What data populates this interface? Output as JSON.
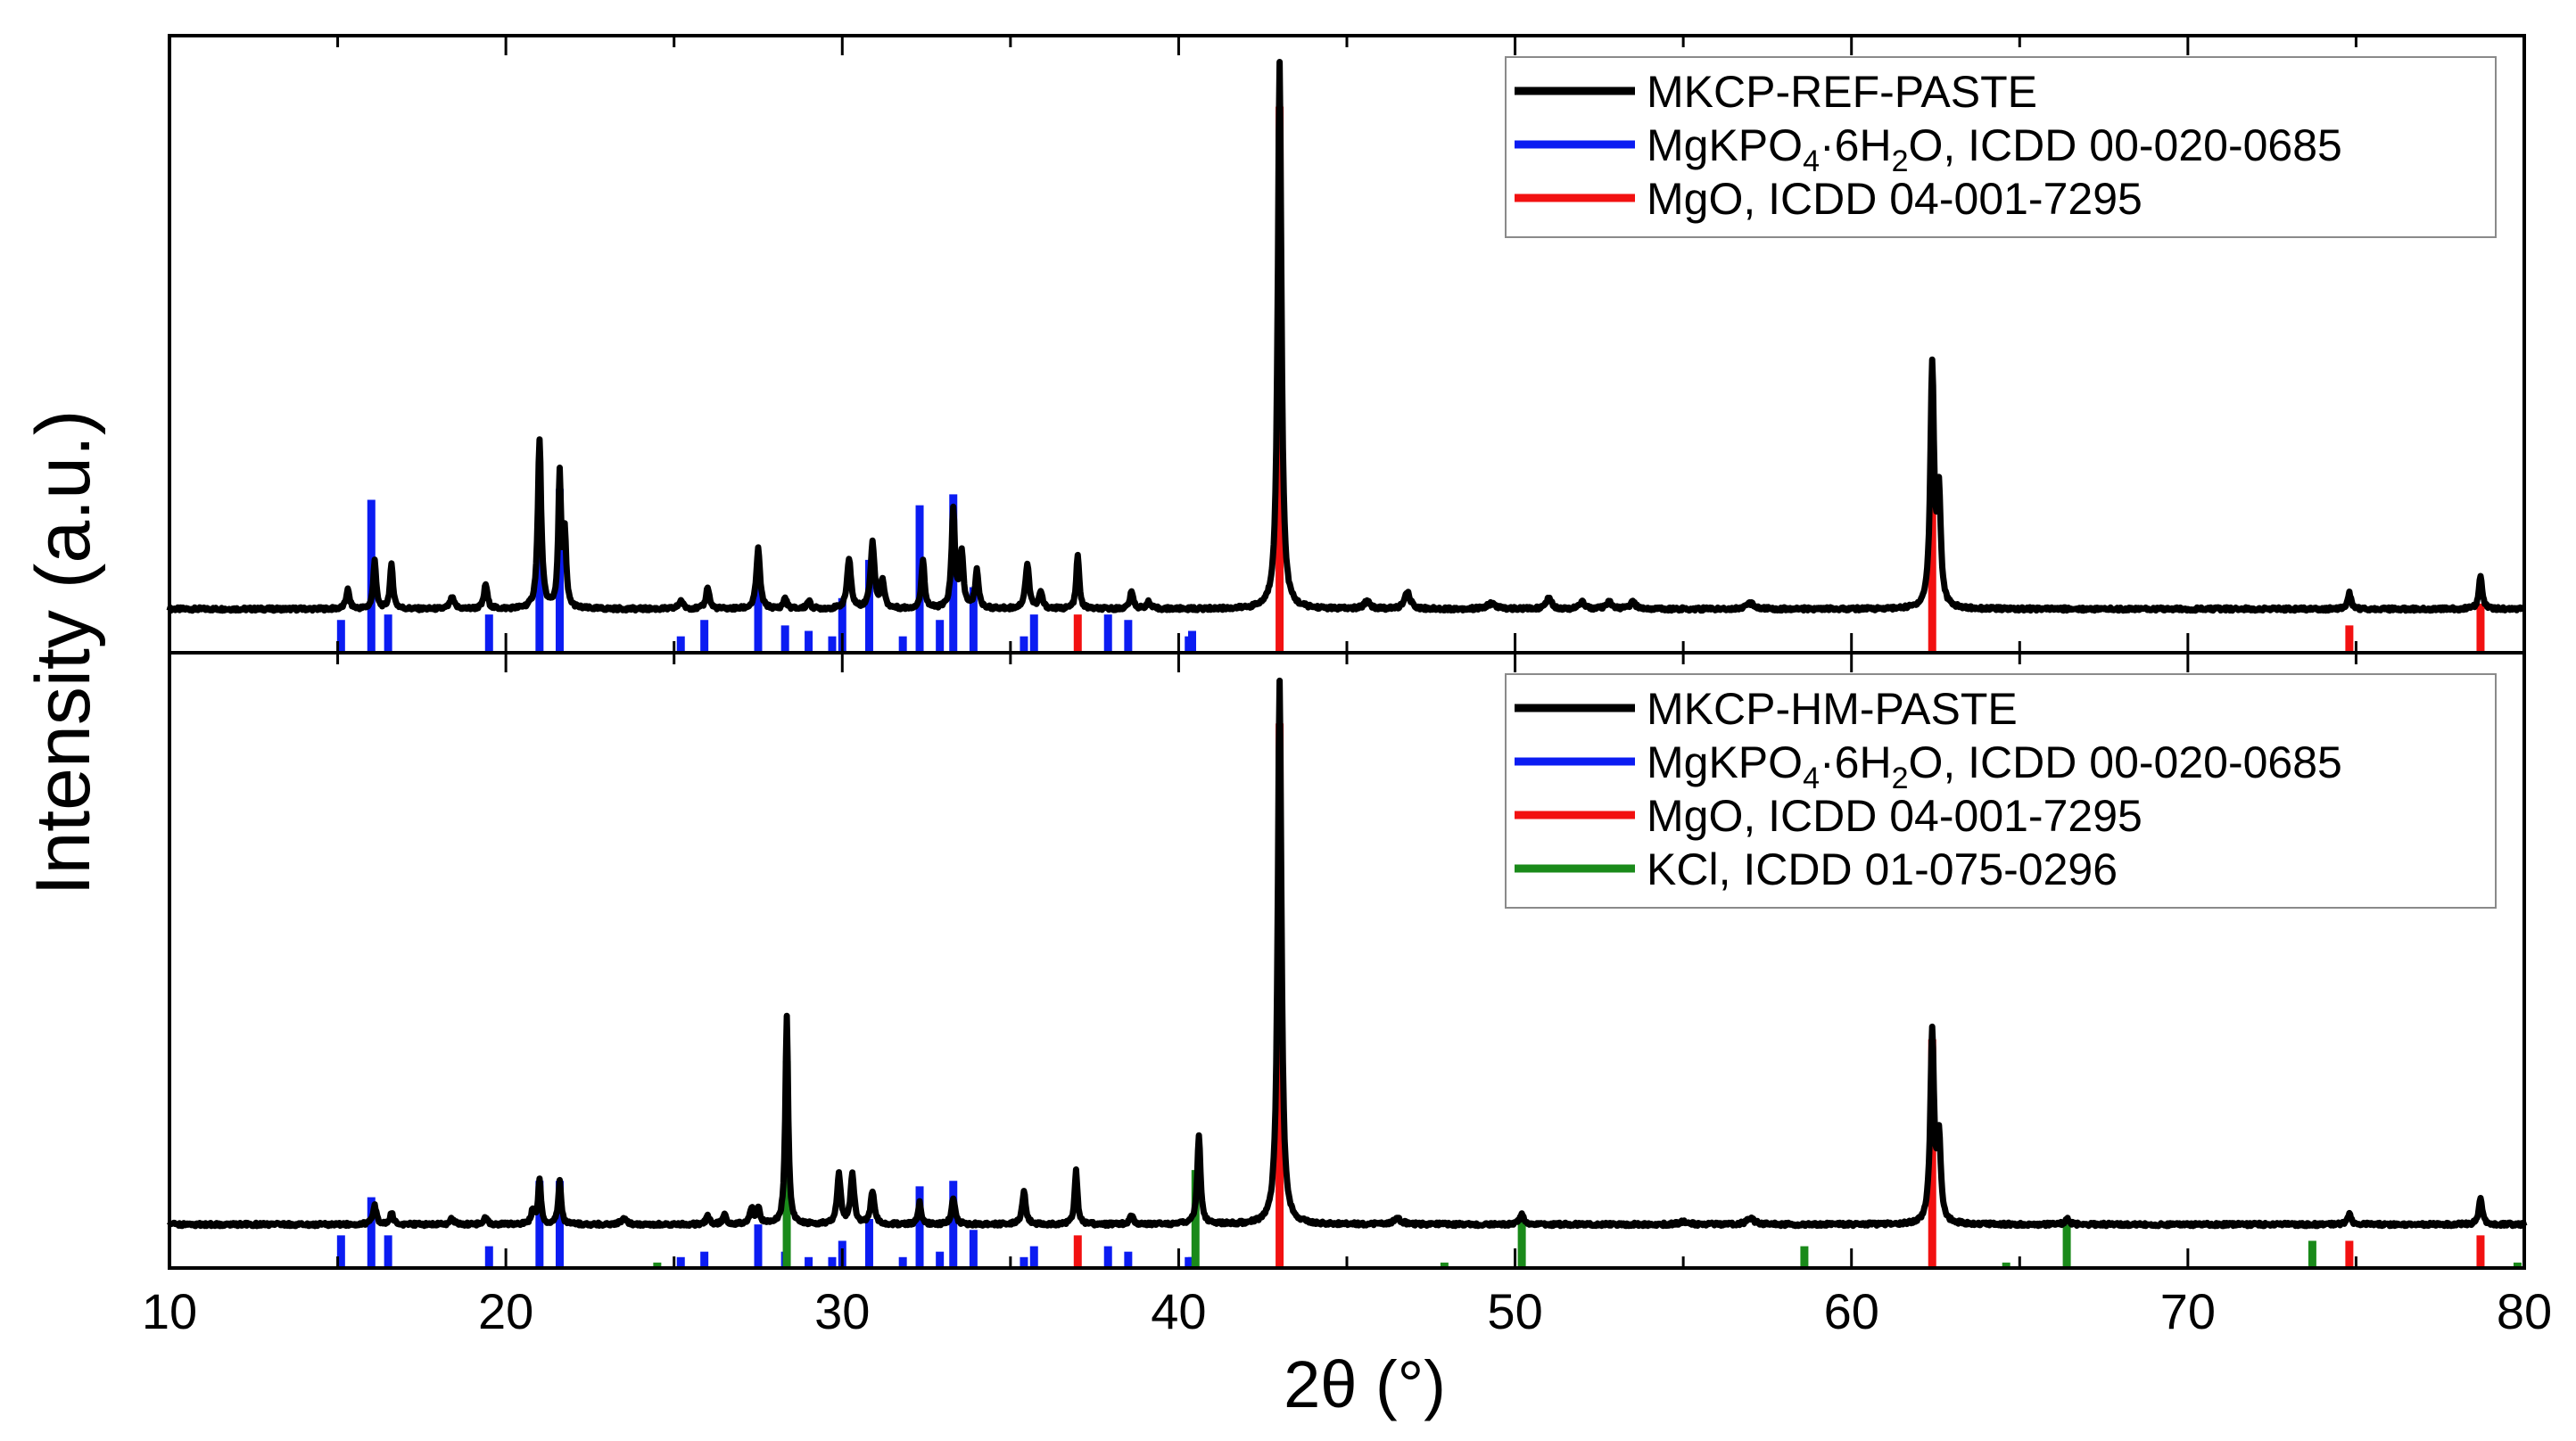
{
  "chart_data": {
    "type": "line",
    "ylabel": "Intensity (a.u.)",
    "xlabel": "2θ (°)",
    "xlim": [
      10,
      80
    ],
    "xticks": [
      "10",
      "20",
      "30",
      "40",
      "50",
      "60",
      "70",
      "80"
    ],
    "colors": {
      "pattern": "#000000",
      "mkp": "#0b1cf2",
      "mgo": "#f21111",
      "kcl": "#1a8a1a"
    },
    "panels": [
      {
        "id": "top",
        "ylim": [
          -0.08,
          1.05
        ],
        "legend": [
          {
            "key": "pattern",
            "label": "MKCP-REF-PASTE"
          },
          {
            "key": "mkp",
            "label_parts": [
              "MgKPO",
              "4",
              "·6H",
              "2",
              "O, ICDD 00-020-0685"
            ]
          },
          {
            "key": "mgo",
            "label": "MgO, ICDD 04-001-7295"
          }
        ],
        "pattern": {
          "name": "MKCP-REF-PASTE",
          "baseline": 0.0,
          "peaks": [
            [
              15.3,
              0.035,
              0.12
            ],
            [
              16.1,
              0.09,
              0.1
            ],
            [
              16.6,
              0.08,
              0.11
            ],
            [
              18.4,
              0.02,
              0.15
            ],
            [
              19.4,
              0.045,
              0.12
            ],
            [
              21.0,
              0.31,
              0.12
            ],
            [
              21.6,
              0.24,
              0.1
            ],
            [
              21.75,
              0.13,
              0.1
            ],
            [
              25.2,
              0.015,
              0.15
            ],
            [
              26.0,
              0.04,
              0.12
            ],
            [
              27.5,
              0.11,
              0.13
            ],
            [
              28.3,
              0.02,
              0.12
            ],
            [
              29.0,
              0.015,
              0.12
            ],
            [
              30.2,
              0.09,
              0.14
            ],
            [
              30.9,
              0.12,
              0.14
            ],
            [
              31.2,
              0.05,
              0.12
            ],
            [
              32.4,
              0.09,
              0.11
            ],
            [
              33.3,
              0.18,
              0.12
            ],
            [
              33.55,
              0.1,
              0.12
            ],
            [
              34.0,
              0.07,
              0.12
            ],
            [
              35.5,
              0.08,
              0.14
            ],
            [
              35.9,
              0.03,
              0.12
            ],
            [
              37.0,
              0.1,
              0.1
            ],
            [
              38.6,
              0.03,
              0.13
            ],
            [
              39.1,
              0.012,
              0.15
            ],
            [
              43.0,
              1.0,
              0.13
            ],
            [
              45.6,
              0.015,
              0.2
            ],
            [
              46.8,
              0.03,
              0.2
            ],
            [
              49.3,
              0.01,
              0.3
            ],
            [
              51.0,
              0.02,
              0.2
            ],
            [
              52.0,
              0.012,
              0.2
            ],
            [
              52.8,
              0.012,
              0.2
            ],
            [
              53.5,
              0.012,
              0.2
            ],
            [
              57.0,
              0.01,
              0.3
            ],
            [
              62.4,
              0.44,
              0.13
            ],
            [
              62.6,
              0.2,
              0.13
            ],
            [
              74.8,
              0.03,
              0.12
            ],
            [
              78.7,
              0.06,
              0.12
            ]
          ]
        },
        "references": [
          {
            "name": "MgKPO4·6H2O, ICDD 00-020-0685",
            "key": "mkp",
            "x": [
              15.1,
              16.0,
              16.5,
              19.5,
              21.0,
              21.6,
              25.2,
              25.9,
              27.5,
              28.3,
              29.0,
              29.7,
              30.0,
              30.8,
              31.8,
              32.3,
              32.9,
              33.3,
              33.9,
              35.4,
              35.7,
              37.9,
              38.5,
              40.3,
              40.4
            ],
            "h": [
              0.06,
              0.28,
              0.07,
              0.07,
              0.3,
              0.3,
              0.03,
              0.06,
              0.14,
              0.05,
              0.04,
              0.03,
              0.1,
              0.17,
              0.03,
              0.27,
              0.06,
              0.29,
              0.12,
              0.03,
              0.07,
              0.07,
              0.06,
              0.03,
              0.04
            ]
          },
          {
            "name": "MgO, ICDD 04-001-7295",
            "key": "mgo",
            "x": [
              37.0,
              43.0,
              62.4,
              74.8,
              78.7
            ],
            "h": [
              0.07,
              1.0,
              0.45,
              0.05,
              0.09
            ]
          }
        ]
      },
      {
        "id": "bottom",
        "ylim": [
          -0.08,
          1.05
        ],
        "legend": [
          {
            "key": "pattern",
            "label": "MKCP-HM-PASTE"
          },
          {
            "key": "mkp",
            "label_parts": [
              "MgKPO",
              "4",
              "·6H",
              "2",
              "O, ICDD 00-020-0685"
            ]
          },
          {
            "key": "mgo",
            "label": "MgO, ICDD 04-001-7295"
          },
          {
            "key": "kcl",
            "label": "KCl, ICDD 01-075-0296"
          }
        ],
        "pattern": {
          "name": "MKCP-HM-PASTE",
          "baseline": 0.0,
          "peaks": [
            [
              16.1,
              0.035,
              0.12
            ],
            [
              16.6,
              0.02,
              0.12
            ],
            [
              18.4,
              0.01,
              0.15
            ],
            [
              19.4,
              0.015,
              0.12
            ],
            [
              20.8,
              0.025,
              0.12
            ],
            [
              21.0,
              0.08,
              0.1
            ],
            [
              21.6,
              0.08,
              0.1
            ],
            [
              23.5,
              0.01,
              0.2
            ],
            [
              26.0,
              0.015,
              0.12
            ],
            [
              26.5,
              0.02,
              0.12
            ],
            [
              27.3,
              0.03,
              0.12
            ],
            [
              27.5,
              0.03,
              0.12
            ],
            [
              28.35,
              0.38,
              0.1
            ],
            [
              29.9,
              0.09,
              0.13
            ],
            [
              30.3,
              0.09,
              0.13
            ],
            [
              30.9,
              0.06,
              0.13
            ],
            [
              32.3,
              0.04,
              0.11
            ],
            [
              33.3,
              0.05,
              0.12
            ],
            [
              35.4,
              0.06,
              0.13
            ],
            [
              36.95,
              0.1,
              0.1
            ],
            [
              38.6,
              0.015,
              0.13
            ],
            [
              40.6,
              0.16,
              0.12
            ],
            [
              43.0,
              1.0,
              0.13
            ],
            [
              46.5,
              0.01,
              0.3
            ],
            [
              50.2,
              0.02,
              0.15
            ],
            [
              55.0,
              0.005,
              0.3
            ],
            [
              57.0,
              0.01,
              0.3
            ],
            [
              62.4,
              0.35,
              0.13
            ],
            [
              62.6,
              0.15,
              0.13
            ],
            [
              66.4,
              0.01,
              0.15
            ],
            [
              74.8,
              0.02,
              0.12
            ],
            [
              78.7,
              0.05,
              0.12
            ]
          ]
        },
        "references": [
          {
            "name": "MgKPO4·6H2O, ICDD 00-020-0685",
            "key": "mkp",
            "x": [
              15.1,
              16.0,
              16.5,
              19.5,
              21.0,
              21.6,
              25.2,
              25.9,
              27.5,
              28.3,
              29.0,
              29.7,
              30.0,
              30.8,
              31.8,
              32.3,
              32.9,
              33.3,
              33.9,
              35.4,
              35.7,
              37.9,
              38.5,
              40.3,
              40.4
            ],
            "h": [
              0.06,
              0.13,
              0.06,
              0.04,
              0.16,
              0.16,
              0.02,
              0.03,
              0.08,
              0.03,
              0.02,
              0.02,
              0.05,
              0.09,
              0.02,
              0.15,
              0.03,
              0.16,
              0.07,
              0.02,
              0.04,
              0.04,
              0.03,
              0.02,
              0.02
            ]
          },
          {
            "name": "MgO, ICDD 04-001-7295",
            "key": "mgo",
            "x": [
              37.0,
              43.0,
              62.4,
              74.8,
              78.7
            ],
            "h": [
              0.06,
              1.0,
              0.42,
              0.05,
              0.06
            ]
          },
          {
            "name": "KCl, ICDD 01-075-0296",
            "key": "kcl",
            "x": [
              24.5,
              28.35,
              40.5,
              47.9,
              50.2,
              58.6,
              64.6,
              66.4,
              73.7,
              79.8
            ],
            "h": [
              0.01,
              0.38,
              0.18,
              0.01,
              0.09,
              0.04,
              0.01,
              0.08,
              0.05,
              0.01
            ]
          }
        ]
      }
    ]
  }
}
